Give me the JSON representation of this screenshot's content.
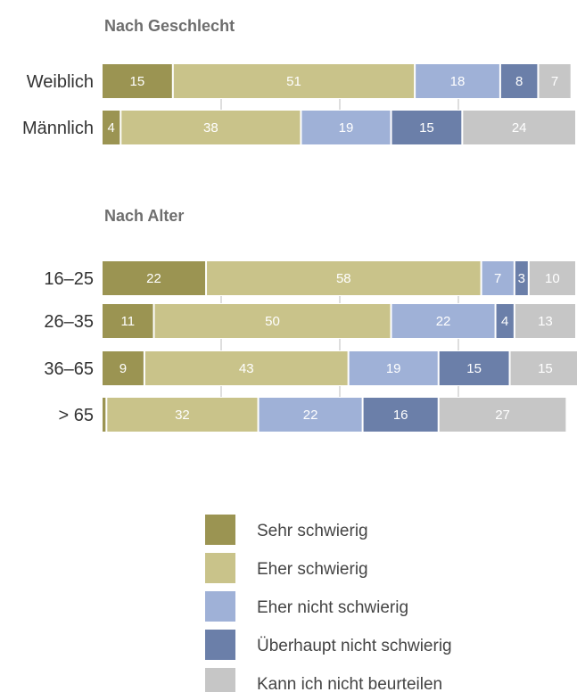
{
  "chart_data": {
    "type": "bar",
    "orientation": "horizontal",
    "stacked": true,
    "xlim": [
      0,
      100
    ],
    "legend_position": "bottom",
    "categories_legend": [
      {
        "name": "Sehr schwierig",
        "color": "#9b9452"
      },
      {
        "name": "Eher schwierig",
        "color": "#c9c38a"
      },
      {
        "name": "Eher nicht schwierig",
        "color": "#9fb1d7"
      },
      {
        "name": "Überhaupt nicht schwierig",
        "color": "#6b7fa9"
      },
      {
        "name": "Kann ich nicht beurteilen",
        "color": "#c6c6c6"
      }
    ],
    "groups": [
      {
        "title": "Nach Geschlecht",
        "rows": [
          {
            "label": "Weiblich",
            "values": [
              15,
              51,
              18,
              8,
              7
            ]
          },
          {
            "label": "Männlich",
            "values": [
              4,
              38,
              19,
              15,
              24
            ]
          }
        ]
      },
      {
        "title": "Nach Alter",
        "rows": [
          {
            "label": "16–25",
            "values": [
              22,
              58,
              7,
              3,
              10
            ]
          },
          {
            "label": "26–35",
            "values": [
              11,
              50,
              22,
              4,
              13
            ]
          },
          {
            "label": "36–65",
            "values": [
              9,
              43,
              19,
              15,
              15
            ]
          },
          {
            "label": "> 65",
            "values": [
              1,
              32,
              22,
              16,
              27
            ]
          }
        ]
      }
    ],
    "hidden_value_labels": [
      [
        3,
        0
      ]
    ]
  }
}
